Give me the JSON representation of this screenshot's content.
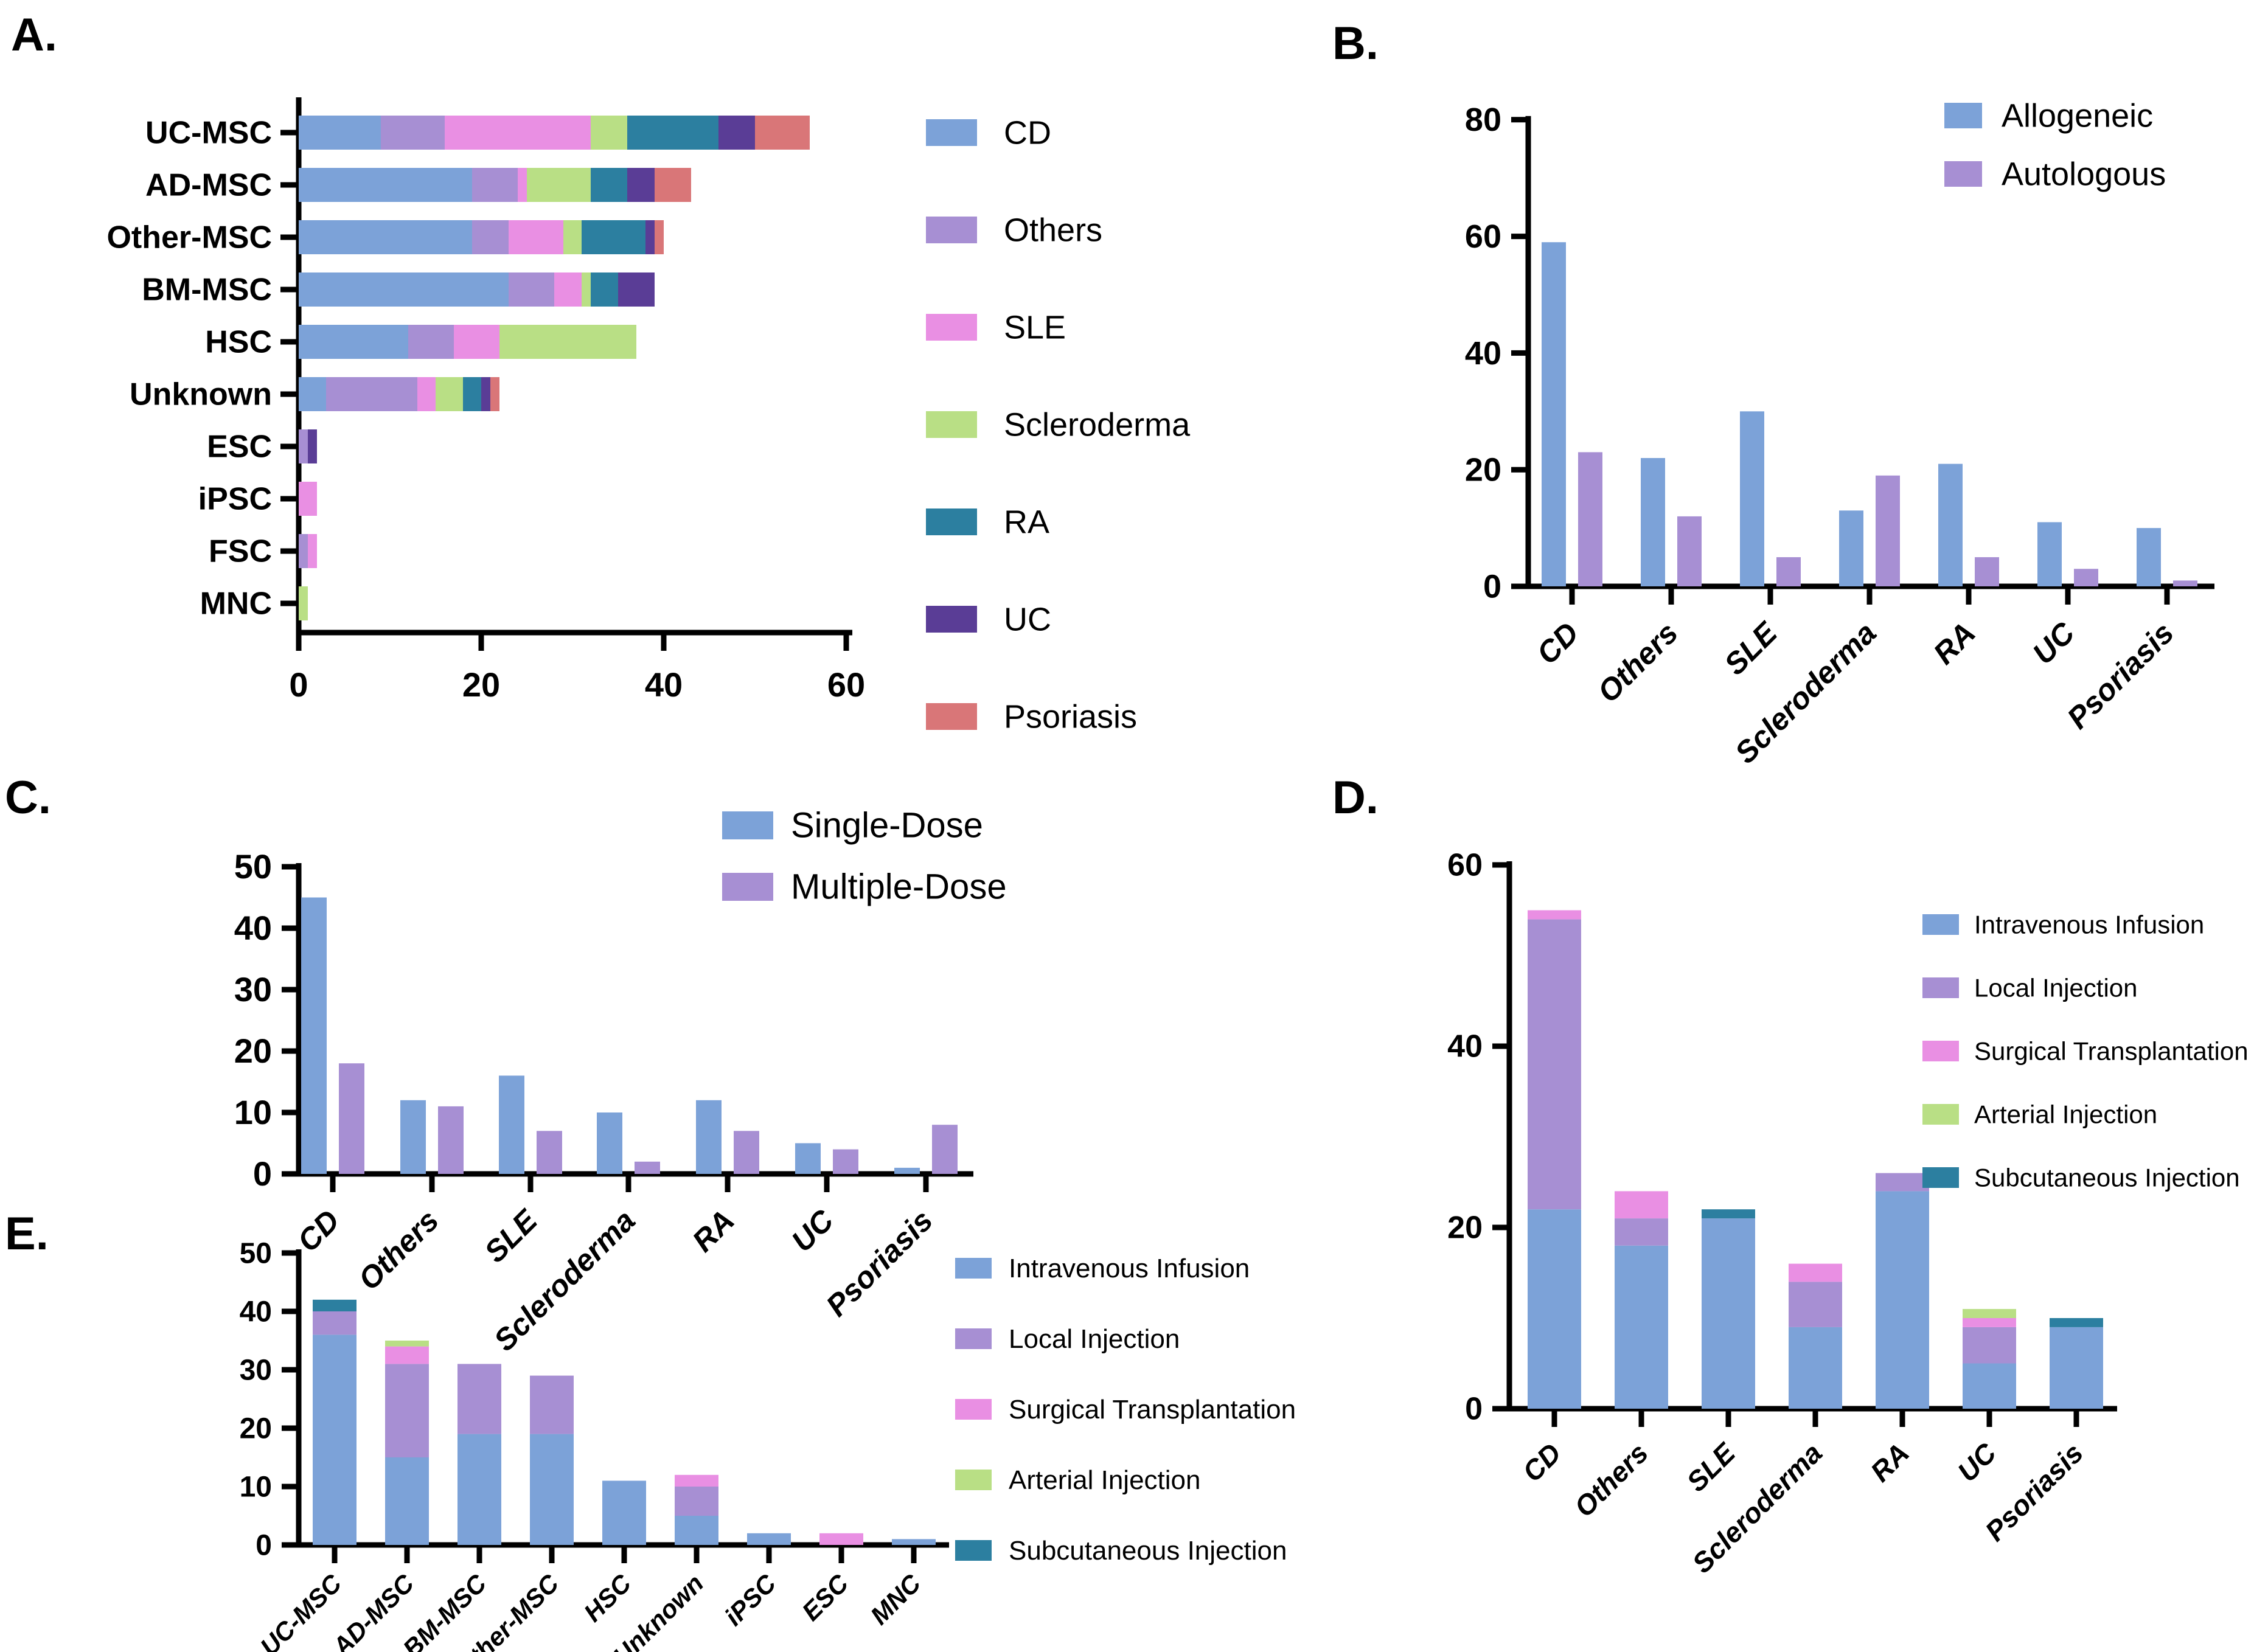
{
  "figure": {
    "background": "#FFFFFF",
    "description_colors": {
      "blue": "#7CA2D8",
      "purple": "#A78FD3",
      "pink": "#E98FE3",
      "green": "#B9DF85",
      "teal": "#2C7FA0",
      "dark_purple": "#5A3D96",
      "salmon": "#D97678"
    }
  },
  "chart_data": [
    {
      "panel_label": "A.",
      "type": "bar",
      "orientation": "horizontal",
      "stacked": true,
      "grid": false,
      "legend_position": "right",
      "categories": [
        "UC-MSC",
        "AD-MSC",
        "Other-MSC",
        "BM-MSC",
        "HSC",
        "Unknown",
        "ESC",
        "iPSC",
        "FSC",
        "MNC"
      ],
      "series": [
        {
          "name": "CD",
          "color": "#7CA2D8",
          "values": [
            9,
            19,
            19,
            23,
            12,
            3,
            0,
            0,
            0,
            0
          ]
        },
        {
          "name": "Others",
          "color": "#A78FD3",
          "values": [
            7,
            5,
            4,
            5,
            5,
            10,
            1,
            0,
            1,
            0
          ]
        },
        {
          "name": "SLE",
          "color": "#E98FE3",
          "values": [
            16,
            1,
            6,
            3,
            5,
            2,
            0,
            2,
            1,
            0
          ]
        },
        {
          "name": "Scleroderma",
          "color": "#B9DF85",
          "values": [
            4,
            7,
            2,
            1,
            15,
            3,
            0,
            0,
            0,
            1
          ]
        },
        {
          "name": "RA",
          "color": "#2C7FA0",
          "values": [
            10,
            4,
            7,
            3,
            0,
            2,
            0,
            0,
            0,
            0
          ]
        },
        {
          "name": "UC",
          "color": "#5A3D96",
          "values": [
            4,
            3,
            1,
            4,
            0,
            1,
            1,
            0,
            0,
            0
          ]
        },
        {
          "name": "Psoriasis",
          "color": "#D97678",
          "values": [
            6,
            4,
            1,
            0,
            0,
            1,
            0,
            0,
            0,
            0
          ]
        }
      ],
      "totals": [
        56,
        43,
        40,
        39,
        37,
        22,
        2,
        2,
        2,
        1
      ],
      "xlim": [
        0,
        60
      ],
      "xticks": [
        0,
        20,
        40,
        60
      ]
    },
    {
      "panel_label": "B.",
      "type": "bar",
      "orientation": "vertical",
      "stacked": false,
      "grid": false,
      "legend_position": "top-right",
      "categories": [
        "CD",
        "Others",
        "SLE",
        "Scleroderma",
        "RA",
        "UC",
        "Psoriasis"
      ],
      "series": [
        {
          "name": "Allogeneic",
          "color": "#7CA2D8",
          "values": [
            59,
            22,
            30,
            13,
            21,
            11,
            10
          ]
        },
        {
          "name": "Autologous",
          "color": "#A78FD3",
          "values": [
            23,
            12,
            5,
            19,
            5,
            3,
            1
          ]
        }
      ],
      "ylim": [
        0,
        80
      ],
      "yticks": [
        0,
        20,
        40,
        60,
        80
      ]
    },
    {
      "panel_label": "C.",
      "type": "bar",
      "orientation": "vertical",
      "stacked": false,
      "grid": false,
      "legend_position": "top-right",
      "categories": [
        "CD",
        "Others",
        "SLE",
        "Scleroderma",
        "RA",
        "UC",
        "Psoriasis"
      ],
      "series": [
        {
          "name": "Single-Dose",
          "color": "#7CA2D8",
          "values": [
            45,
            12,
            16,
            10,
            12,
            5,
            1
          ]
        },
        {
          "name": "Multiple-Dose",
          "color": "#A78FD3",
          "values": [
            18,
            11,
            7,
            2,
            7,
            4,
            8
          ]
        }
      ],
      "ylim": [
        0,
        50
      ],
      "yticks": [
        0,
        10,
        20,
        30,
        40,
        50
      ]
    },
    {
      "panel_label": "D.",
      "type": "bar",
      "orientation": "vertical",
      "stacked": true,
      "grid": false,
      "legend_position": "right",
      "categories": [
        "CD",
        "Others",
        "SLE",
        "Scleroderma",
        "RA",
        "UC",
        "Psoriasis"
      ],
      "series": [
        {
          "name": "Intravenous Infusion",
          "color": "#7CA2D8",
          "values": [
            22,
            18,
            21,
            9,
            24,
            5,
            9
          ]
        },
        {
          "name": "Local Injection",
          "color": "#A78FD3",
          "values": [
            32,
            3,
            0,
            5,
            2,
            4,
            0
          ]
        },
        {
          "name": "Surgical Transplantation",
          "color": "#E98FE3",
          "values": [
            1,
            3,
            0,
            2,
            0,
            1,
            0
          ]
        },
        {
          "name": "Arterial Injection",
          "color": "#B9DF85",
          "values": [
            0,
            0,
            0,
            0,
            0,
            1,
            0
          ]
        },
        {
          "name": "Subcutaneous Injection",
          "color": "#2C7FA0",
          "values": [
            0,
            0,
            1,
            0,
            0,
            0,
            1
          ]
        }
      ],
      "totals": [
        55,
        24,
        22,
        16,
        26,
        11,
        10
      ],
      "ylim": [
        0,
        60
      ],
      "yticks": [
        0,
        20,
        40,
        60
      ]
    },
    {
      "panel_label": "E.",
      "type": "bar",
      "orientation": "vertical",
      "stacked": true,
      "grid": false,
      "legend_position": "right",
      "categories": [
        "UC-MSC",
        "AD-MSC",
        "BM-MSC",
        "Other-MSC",
        "HSC",
        "Unknown",
        "iPSC",
        "ESC",
        "MNC"
      ],
      "series": [
        {
          "name": "Intravenous Infusion",
          "color": "#7CA2D8",
          "values": [
            36,
            15,
            19,
            19,
            11,
            5,
            2,
            0,
            1
          ]
        },
        {
          "name": "Local Injection",
          "color": "#A78FD3",
          "values": [
            4,
            16,
            12,
            10,
            0,
            5,
            0,
            0,
            0
          ]
        },
        {
          "name": "Surgical Transplantation",
          "color": "#E98FE3",
          "values": [
            0,
            3,
            0,
            0,
            0,
            2,
            0,
            2,
            0
          ]
        },
        {
          "name": "Arterial Injection",
          "color": "#B9DF85",
          "values": [
            0,
            1,
            0,
            0,
            0,
            0,
            0,
            0,
            0
          ]
        },
        {
          "name": "Subcutaneous Injection",
          "color": "#2C7FA0",
          "values": [
            2,
            0,
            0,
            0,
            0,
            0,
            0,
            0,
            0
          ]
        }
      ],
      "totals": [
        42,
        35,
        31,
        29,
        11,
        12,
        2,
        2,
        1
      ],
      "ylim": [
        0,
        50
      ],
      "yticks": [
        0,
        10,
        20,
        30,
        40,
        50
      ]
    }
  ]
}
